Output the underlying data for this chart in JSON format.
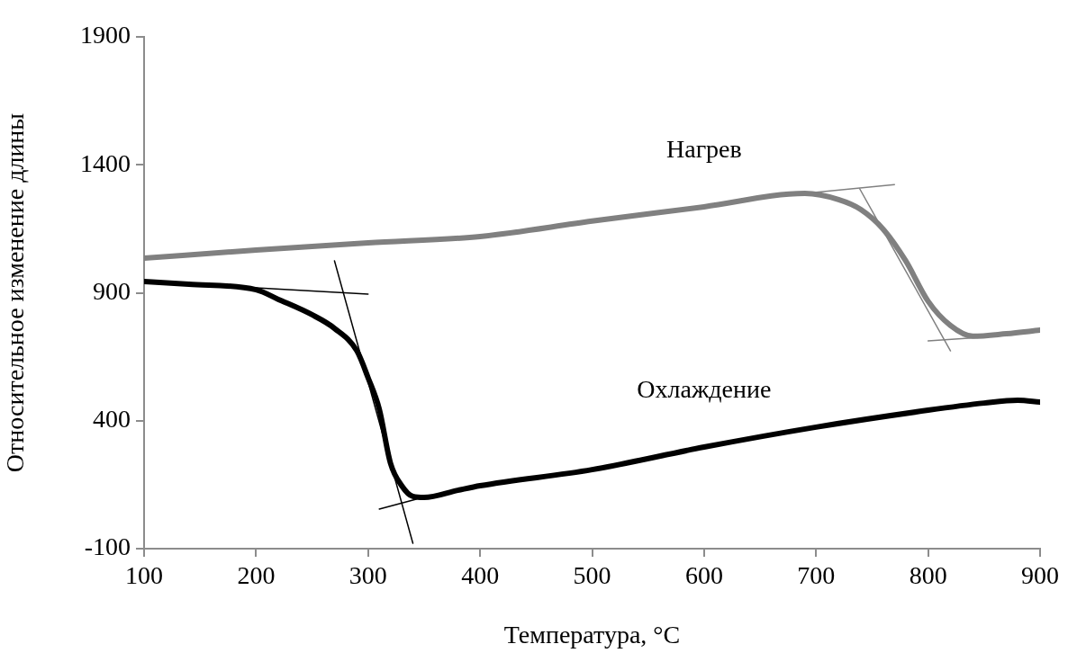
{
  "chart_data": {
    "type": "line",
    "xlabel": "Температура, °C",
    "ylabel": "Относительное изменение длины",
    "xlim": [
      100,
      900
    ],
    "xticks": [
      100,
      200,
      300,
      400,
      500,
      600,
      700,
      800,
      900
    ],
    "ylim": [
      -100,
      1900
    ],
    "yticks": [
      -100,
      400,
      900,
      1400,
      1900
    ],
    "grid": false,
    "legend": false,
    "marker": "none",
    "line_style": "solid",
    "series": [
      {
        "name": "Нагрев",
        "color": "#808080",
        "x": [
          100,
          200,
          300,
          400,
          500,
          600,
          690,
          720,
          740,
          760,
          780,
          800,
          820,
          840,
          870,
          900
        ],
        "values": [
          1035,
          1067,
          1095,
          1120,
          1180,
          1236,
          1288,
          1264,
          1225,
          1148,
          1025,
          867,
          772,
          730,
          740,
          754
        ]
      },
      {
        "name": "Охлаждение",
        "color": "#000000",
        "x": [
          100,
          140,
          200,
          220,
          250,
          270,
          290,
          300,
          310,
          320,
          330,
          340,
          350,
          380,
          400,
          500,
          600,
          700,
          800,
          850,
          880,
          900
        ],
        "values": [
          944,
          933,
          912,
          874,
          814,
          761,
          673,
          568,
          445,
          234,
          146,
          104,
          100,
          128,
          146,
          209,
          297,
          375,
          441,
          469,
          480,
          473
        ]
      },
      {
        "color": "#000000",
        "x": [
          100,
          300
        ],
        "values": [
          944,
          895
        ]
      },
      {
        "color": "#000000",
        "x": [
          270,
          340
        ],
        "values": [
          1025,
          -79
        ]
      },
      {
        "color": "#000000",
        "x": [
          310,
          343
        ],
        "values": [
          55,
          93
        ]
      },
      {
        "color": "#808080",
        "x": [
          690,
          770
        ],
        "values": [
          1288,
          1323
        ]
      },
      {
        "color": "#808080",
        "x": [
          739,
          820
        ],
        "values": [
          1306,
          673
        ]
      },
      {
        "color": "#808080",
        "x": [
          800,
          848
        ],
        "values": [
          712,
          726
        ]
      }
    ]
  }
}
